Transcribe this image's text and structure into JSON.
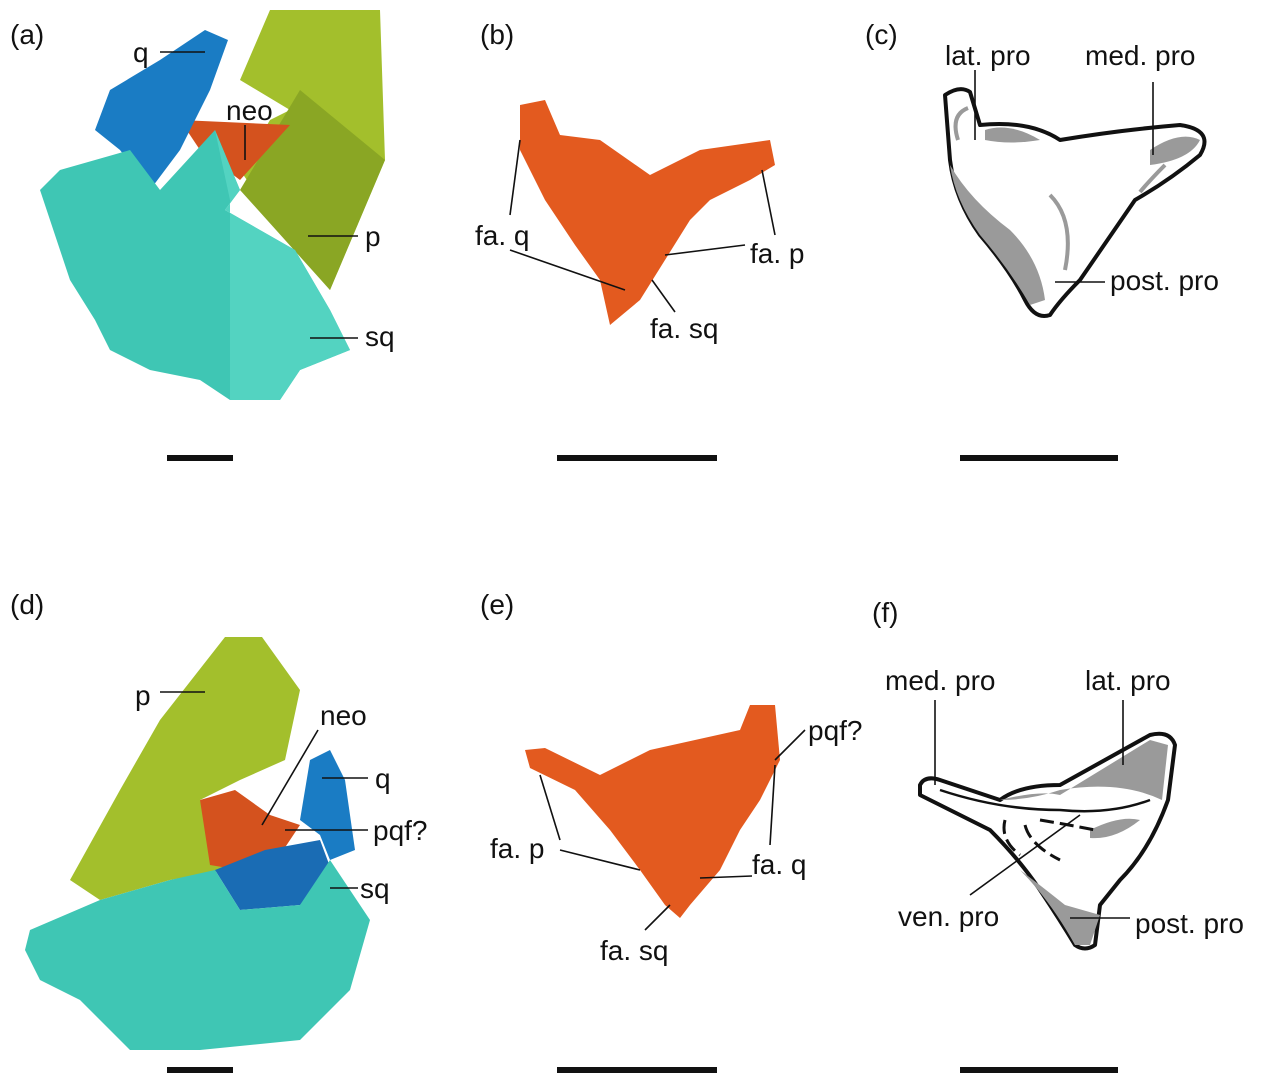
{
  "panels": [
    {
      "label": "(a)",
      "annotations": [
        "q",
        "neo",
        "p",
        "sq"
      ]
    },
    {
      "label": "(b)",
      "annotations": [
        "fa. q",
        "fa. p",
        "fa. sq"
      ]
    },
    {
      "label": "(c)",
      "annotations": [
        "lat. pro",
        "med. pro",
        "post. pro"
      ]
    },
    {
      "label": "(d)",
      "annotations": [
        "p",
        "neo",
        "q",
        "pqf?",
        "sq"
      ]
    },
    {
      "label": "(e)",
      "annotations": [
        "pqf?",
        "fa. p",
        "fa. q",
        "fa. sq"
      ]
    },
    {
      "label": "(f)",
      "annotations": [
        "med. pro",
        "lat. pro",
        "ven. pro",
        "post. pro"
      ]
    }
  ]
}
